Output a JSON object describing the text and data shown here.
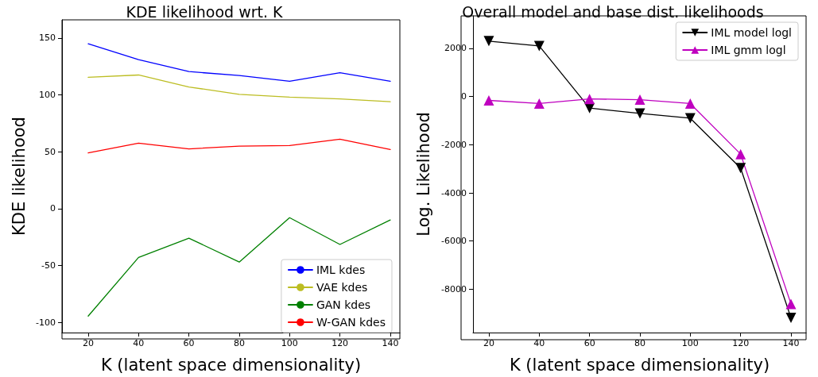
{
  "chart_data": [
    {
      "type": "line",
      "title": "KDE likelihood wrt. K",
      "xlabel": "K (latent space dimensionality)",
      "ylabel": "KDE likelihood",
      "x": [
        20,
        40,
        60,
        80,
        100,
        120,
        140
      ],
      "series": [
        {
          "name": "IML kdes",
          "color": "#0000ff",
          "values": [
            145,
            131,
            120.5,
            117,
            112,
            119.5,
            112
          ]
        },
        {
          "name": "VAE kdes",
          "color": "#bcbd22",
          "values": [
            115.5,
            117.5,
            107,
            100.5,
            98,
            96.5,
            94
          ]
        },
        {
          "name": "GAN kdes",
          "color": "#008000",
          "values": [
            -94.5,
            -43,
            -26,
            -47,
            -8,
            -31.5,
            -10
          ]
        },
        {
          "name": "W-GAN kdes",
          "color": "#ff0000",
          "values": [
            49,
            57.5,
            52.5,
            55,
            55.5,
            61,
            52
          ]
        }
      ],
      "xlim": [
        9.6,
        143.8
      ],
      "xticks": [
        20,
        40,
        60,
        80,
        100,
        120,
        140
      ],
      "ylim": [
        -109,
        166
      ],
      "yticks": [
        -100,
        -50,
        0,
        50,
        100,
        150
      ],
      "legend": "bottom right",
      "grid": false,
      "marker": "none"
    },
    {
      "type": "line",
      "title": "Overall model and base dist. likelihoods",
      "xlabel": "K (latent space dimensionality)",
      "ylabel": "Log. Likelihood",
      "x": [
        20,
        40,
        60,
        80,
        100,
        120,
        140
      ],
      "series": [
        {
          "name": "IML model logl",
          "color": "#000000",
          "marker": "triangle-down",
          "values": [
            2300,
            2100,
            -480,
            -700,
            -900,
            -2970,
            -9190
          ]
        },
        {
          "name": "IML gmm logl",
          "color": "#bf00bf",
          "marker": "triangle",
          "values": [
            -160,
            -290,
            -100,
            -130,
            -290,
            -2390,
            -8610
          ]
        }
      ],
      "xlim": [
        13.7,
        146
      ],
      "xticks": [
        20,
        40,
        60,
        80,
        100,
        120,
        140
      ],
      "ylim": [
        -9800,
        3350
      ],
      "yticks": [
        -8000,
        -6000,
        -4000,
        -2000,
        0,
        2000
      ],
      "legend": "top right",
      "grid": false
    }
  ]
}
